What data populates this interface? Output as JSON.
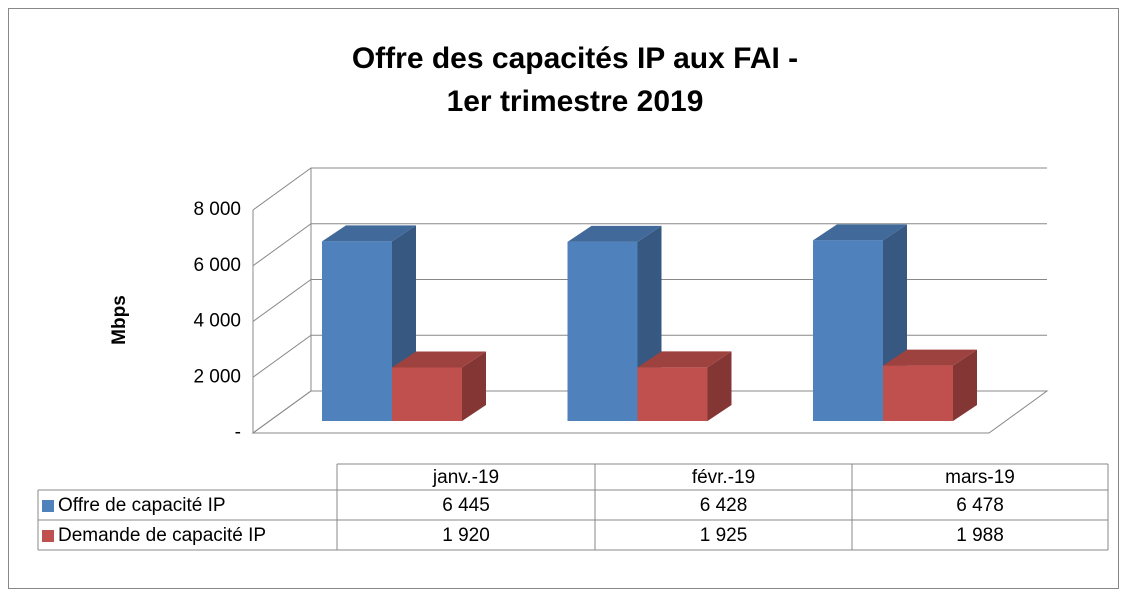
{
  "chart_data": {
    "type": "bar3d",
    "title": [
      "Offre des capacités IP aux FAI -",
      "1er  trimestre 2019"
    ],
    "y_label": "Mbps",
    "categories": [
      "janv.-19",
      "févr.-19",
      "mars-19"
    ],
    "series": [
      {
        "name": "Offre de capacité IP",
        "color": "#4f81bd",
        "values": [
          6445,
          6428,
          6478
        ],
        "value_labels": [
          "6 445",
          "6 428",
          "6 478"
        ]
      },
      {
        "name": "Demande de capacité IP",
        "color": "#c0504d",
        "values": [
          1920,
          1925,
          1988
        ],
        "value_labels": [
          "1 920",
          "1 925",
          "1 988"
        ]
      }
    ],
    "ylim": [
      0,
      8000
    ],
    "yticks": [
      {
        "value": 0,
        "label": "-"
      },
      {
        "value": 2000,
        "label": "2 000"
      },
      {
        "value": 4000,
        "label": "4 000"
      },
      {
        "value": 6000,
        "label": "6 000"
      },
      {
        "value": 8000,
        "label": "8 000"
      }
    ],
    "grid": true,
    "legend": "table"
  }
}
